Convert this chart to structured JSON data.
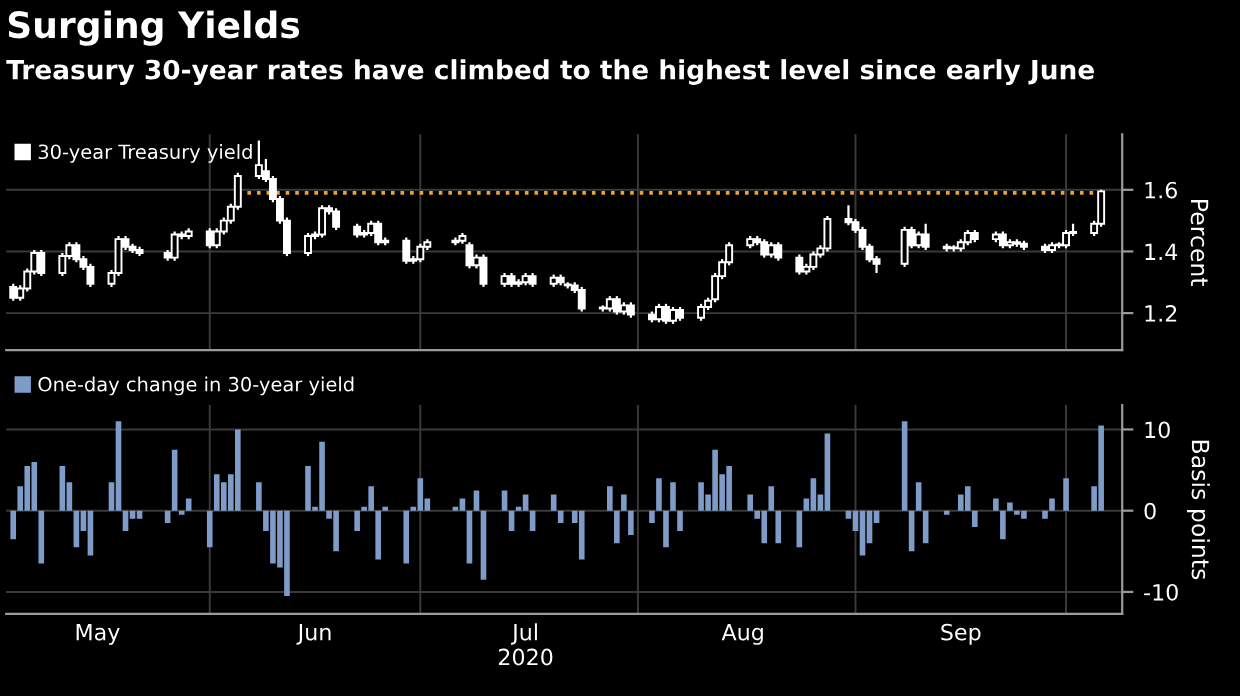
{
  "chart_data": [
    {
      "type": "candlestick",
      "title": "Surging Yields",
      "subtitle": "Treasury 30-year rates have climbed to the highest level since early June",
      "ylabel": "Percent",
      "x": [
        "2020-05-04",
        "2020-05-05",
        "2020-05-06",
        "2020-05-07",
        "2020-05-08",
        "2020-05-11",
        "2020-05-12",
        "2020-05-13",
        "2020-05-14",
        "2020-05-15",
        "2020-05-18",
        "2020-05-19",
        "2020-05-20",
        "2020-05-21",
        "2020-05-22",
        "2020-05-26",
        "2020-05-27",
        "2020-05-28",
        "2020-05-29",
        "2020-06-01",
        "2020-06-02",
        "2020-06-03",
        "2020-06-04",
        "2020-06-05",
        "2020-06-08",
        "2020-06-09",
        "2020-06-10",
        "2020-06-11",
        "2020-06-12",
        "2020-06-15",
        "2020-06-16",
        "2020-06-17",
        "2020-06-18",
        "2020-06-19",
        "2020-06-22",
        "2020-06-23",
        "2020-06-24",
        "2020-06-25",
        "2020-06-26",
        "2020-06-29",
        "2020-06-30",
        "2020-07-01",
        "2020-07-02",
        "2020-07-06",
        "2020-07-07",
        "2020-07-08",
        "2020-07-09",
        "2020-07-10",
        "2020-07-13",
        "2020-07-14",
        "2020-07-15",
        "2020-07-16",
        "2020-07-17",
        "2020-07-20",
        "2020-07-21",
        "2020-07-22",
        "2020-07-23",
        "2020-07-24",
        "2020-07-27",
        "2020-07-28",
        "2020-07-29",
        "2020-07-30",
        "2020-07-31",
        "2020-08-03",
        "2020-08-04",
        "2020-08-05",
        "2020-08-06",
        "2020-08-07",
        "2020-08-10",
        "2020-08-11",
        "2020-08-12",
        "2020-08-13",
        "2020-08-14",
        "2020-08-17",
        "2020-08-18",
        "2020-08-19",
        "2020-08-20",
        "2020-08-21",
        "2020-08-24",
        "2020-08-25",
        "2020-08-26",
        "2020-08-27",
        "2020-08-28",
        "2020-08-31",
        "2020-09-01",
        "2020-09-02",
        "2020-09-03",
        "2020-09-04",
        "2020-09-08",
        "2020-09-09",
        "2020-09-10",
        "2020-09-11",
        "2020-09-14",
        "2020-09-15",
        "2020-09-16",
        "2020-09-17",
        "2020-09-18",
        "2020-09-21",
        "2020-09-22",
        "2020-09-23",
        "2020-09-24",
        "2020-09-25",
        "2020-09-28",
        "2020-09-29",
        "2020-09-30",
        "2020-10-01",
        "2020-10-02",
        "2020-10-05",
        "2020-10-06"
      ],
      "series": [
        {
          "name": "30-year Treasury yield",
          "type": "candlestick",
          "color": "#ffffff",
          "ohlc": [
            [
              1.285,
              1.295,
              1.24,
              1.25
            ],
            [
              1.25,
              1.29,
              1.24,
              1.28
            ],
            [
              1.28,
              1.345,
              1.27,
              1.335
            ],
            [
              1.335,
              1.405,
              1.325,
              1.395
            ],
            [
              1.395,
              1.405,
              1.32,
              1.33
            ],
            [
              1.33,
              1.395,
              1.32,
              1.385
            ],
            [
              1.385,
              1.43,
              1.375,
              1.42
            ],
            [
              1.42,
              1.43,
              1.365,
              1.375
            ],
            [
              1.375,
              1.385,
              1.34,
              1.35
            ],
            [
              1.35,
              1.36,
              1.285,
              1.295
            ],
            [
              1.295,
              1.34,
              1.285,
              1.33
            ],
            [
              1.33,
              1.45,
              1.32,
              1.44
            ],
            [
              1.44,
              1.45,
              1.405,
              1.415
            ],
            [
              1.415,
              1.425,
              1.395,
              1.405
            ],
            [
              1.405,
              1.415,
              1.385,
              1.395
            ],
            [
              1.395,
              1.405,
              1.37,
              1.38
            ],
            [
              1.38,
              1.465,
              1.37,
              1.455
            ],
            [
              1.455,
              1.465,
              1.44,
              1.45
            ],
            [
              1.45,
              1.475,
              1.44,
              1.465
            ],
            [
              1.465,
              1.475,
              1.41,
              1.42
            ],
            [
              1.42,
              1.475,
              1.41,
              1.465
            ],
            [
              1.465,
              1.51,
              1.455,
              1.5
            ],
            [
              1.5,
              1.555,
              1.49,
              1.545
            ],
            [
              1.545,
              1.655,
              1.535,
              1.645
            ],
            [
              1.645,
              1.76,
              1.635,
              1.68
            ],
            [
              1.66,
              1.7,
              1.625,
              1.635
            ],
            [
              1.635,
              1.645,
              1.56,
              1.57
            ],
            [
              1.57,
              1.58,
              1.49,
              1.5
            ],
            [
              1.5,
              1.51,
              1.385,
              1.395
            ],
            [
              1.395,
              1.46,
              1.385,
              1.45
            ],
            [
              1.45,
              1.465,
              1.44,
              1.455
            ],
            [
              1.455,
              1.55,
              1.445,
              1.54
            ],
            [
              1.54,
              1.55,
              1.52,
              1.53
            ],
            [
              1.53,
              1.54,
              1.47,
              1.48
            ],
            [
              1.48,
              1.49,
              1.445,
              1.455
            ],
            [
              1.455,
              1.47,
              1.445,
              1.46
            ],
            [
              1.46,
              1.5,
              1.45,
              1.49
            ],
            [
              1.49,
              1.5,
              1.42,
              1.43
            ],
            [
              1.43,
              1.445,
              1.42,
              1.435
            ],
            [
              1.435,
              1.445,
              1.36,
              1.37
            ],
            [
              1.37,
              1.385,
              1.36,
              1.375
            ],
            [
              1.375,
              1.425,
              1.365,
              1.415
            ],
            [
              1.415,
              1.44,
              1.405,
              1.43
            ],
            [
              1.43,
              1.445,
              1.42,
              1.435
            ],
            [
              1.435,
              1.46,
              1.425,
              1.45
            ],
            [
              1.42,
              1.43,
              1.345,
              1.355
            ],
            [
              1.355,
              1.39,
              1.345,
              1.38
            ],
            [
              1.38,
              1.39,
              1.285,
              1.295
            ],
            [
              1.295,
              1.33,
              1.285,
              1.32
            ],
            [
              1.32,
              1.33,
              1.285,
              1.295
            ],
            [
              1.295,
              1.31,
              1.285,
              1.3
            ],
            [
              1.3,
              1.33,
              1.29,
              1.32
            ],
            [
              1.32,
              1.33,
              1.285,
              1.295
            ],
            [
              1.295,
              1.325,
              1.285,
              1.315
            ],
            [
              1.315,
              1.325,
              1.29,
              1.3
            ],
            [
              1.29,
              1.3,
              1.28,
              1.29
            ],
            [
              1.29,
              1.3,
              1.265,
              1.275
            ],
            [
              1.275,
              1.285,
              1.205,
              1.215
            ],
            [
              1.215,
              1.225,
              1.205,
              1.215
            ],
            [
              1.215,
              1.255,
              1.205,
              1.245
            ],
            [
              1.245,
              1.255,
              1.195,
              1.205
            ],
            [
              1.205,
              1.235,
              1.195,
              1.225
            ],
            [
              1.225,
              1.235,
              1.185,
              1.195
            ],
            [
              1.195,
              1.205,
              1.17,
              1.18
            ],
            [
              1.18,
              1.23,
              1.17,
              1.22
            ],
            [
              1.22,
              1.23,
              1.165,
              1.175
            ],
            [
              1.175,
              1.22,
              1.165,
              1.21
            ],
            [
              1.21,
              1.22,
              1.175,
              1.185
            ],
            [
              1.185,
              1.23,
              1.175,
              1.22
            ],
            [
              1.22,
              1.25,
              1.21,
              1.24
            ],
            [
              1.245,
              1.33,
              1.235,
              1.32
            ],
            [
              1.32,
              1.375,
              1.31,
              1.365
            ],
            [
              1.365,
              1.43,
              1.355,
              1.42
            ],
            [
              1.42,
              1.45,
              1.41,
              1.44
            ],
            [
              1.44,
              1.45,
              1.42,
              1.43
            ],
            [
              1.43,
              1.44,
              1.38,
              1.39
            ],
            [
              1.39,
              1.43,
              1.38,
              1.42
            ],
            [
              1.42,
              1.43,
              1.37,
              1.38
            ],
            [
              1.38,
              1.39,
              1.325,
              1.335
            ],
            [
              1.335,
              1.36,
              1.325,
              1.35
            ],
            [
              1.35,
              1.4,
              1.34,
              1.39
            ],
            [
              1.39,
              1.42,
              1.38,
              1.41
            ],
            [
              1.41,
              1.515,
              1.4,
              1.505
            ],
            [
              1.505,
              1.55,
              1.485,
              1.495
            ],
            [
              1.495,
              1.505,
              1.46,
              1.47
            ],
            [
              1.47,
              1.48,
              1.405,
              1.415
            ],
            [
              1.415,
              1.425,
              1.365,
              1.375
            ],
            [
              1.375,
              1.385,
              1.33,
              1.36
            ],
            [
              1.36,
              1.48,
              1.35,
              1.47
            ],
            [
              1.47,
              1.48,
              1.41,
              1.42
            ],
            [
              1.42,
              1.465,
              1.41,
              1.455
            ],
            [
              1.455,
              1.49,
              1.405,
              1.415
            ],
            [
              1.415,
              1.425,
              1.4,
              1.41
            ],
            [
              1.41,
              1.42,
              1.4,
              1.41
            ],
            [
              1.41,
              1.44,
              1.4,
              1.43
            ],
            [
              1.43,
              1.47,
              1.42,
              1.46
            ],
            [
              1.46,
              1.47,
              1.43,
              1.44
            ],
            [
              1.44,
              1.465,
              1.43,
              1.455
            ],
            [
              1.455,
              1.465,
              1.41,
              1.42
            ],
            [
              1.42,
              1.44,
              1.41,
              1.43
            ],
            [
              1.43,
              1.44,
              1.415,
              1.425
            ],
            [
              1.425,
              1.435,
              1.405,
              1.415
            ],
            [
              1.415,
              1.425,
              1.395,
              1.405
            ],
            [
              1.405,
              1.43,
              1.395,
              1.42
            ],
            [
              1.42,
              1.43,
              1.41,
              1.42
            ],
            [
              1.42,
              1.47,
              1.41,
              1.46
            ],
            [
              1.46,
              1.49,
              1.45,
              1.46
            ],
            [
              1.46,
              1.5,
              1.45,
              1.49
            ],
            [
              1.49,
              1.6,
              1.48,
              1.595
            ]
          ]
        },
        {
          "type": "line",
          "color": "#e8a33a",
          "line_style": "dotted",
          "x": [
            "2020-06-05",
            "2020-10-05"
          ],
          "values": [
            1.59,
            1.59
          ]
        }
      ],
      "xlim": [
        "2020-05-03",
        "2020-10-09"
      ],
      "xticks": [
        {
          "value": "2020-06-01",
          "label": null
        },
        {
          "value": "2020-07-01",
          "label": null
        },
        {
          "value": "2020-08-01",
          "label": null
        },
        {
          "value": "2020-09-01",
          "label": null
        },
        {
          "value": "2020-10-01",
          "label": null
        }
      ],
      "ylim": [
        1.08,
        1.78
      ],
      "yticks": [
        1.2,
        1.4,
        1.6
      ],
      "grid": true,
      "legend": "top left",
      "tick_labels": "y"
    },
    {
      "type": "bar",
      "ylabel": "Basis points",
      "series": [
        {
          "name": "One-day change in 30-year yield",
          "color": "#7f9cc8",
          "values": [
            -3.5,
            3,
            5.5,
            6,
            -6.5,
            5.5,
            3.5,
            -4.5,
            -2.5,
            -5.5,
            3.5,
            11,
            -2.5,
            -1,
            -1,
            -1.5,
            7.5,
            -0.5,
            1.5,
            -4.5,
            4.5,
            3.5,
            4.5,
            10,
            3.5,
            -2.5,
            -6.5,
            -7,
            -10.5,
            5.5,
            0.5,
            8.5,
            -1,
            -5,
            -2.5,
            0.5,
            3,
            -6,
            0.5,
            -6.5,
            0.5,
            4,
            1.5,
            0.5,
            1.5,
            -6.5,
            2.5,
            -8.5,
            2.5,
            -2.5,
            0.5,
            2,
            -2.5,
            2,
            -1.5,
            0,
            -1.5,
            -6,
            0,
            3,
            -4,
            2,
            -3,
            -1.5,
            4,
            -4.5,
            3.5,
            -2.5,
            3.5,
            2,
            7.5,
            4.5,
            5.5,
            2,
            -1,
            -4,
            3,
            -4,
            -4.5,
            1.5,
            4,
            2,
            9.5,
            -1,
            -2.5,
            -5.5,
            -4,
            -1.5,
            11,
            -5,
            3.5,
            -4,
            -0.5,
            0,
            2,
            3,
            -2,
            1.5,
            -3.5,
            1,
            -0.5,
            -1,
            -1,
            1.5,
            0,
            4,
            0,
            3,
            10.5
          ]
        }
      ],
      "x": [
        "2020-05-04",
        "2020-05-05",
        "2020-05-06",
        "2020-05-07",
        "2020-05-08",
        "2020-05-11",
        "2020-05-12",
        "2020-05-13",
        "2020-05-14",
        "2020-05-15",
        "2020-05-18",
        "2020-05-19",
        "2020-05-20",
        "2020-05-21",
        "2020-05-22",
        "2020-05-26",
        "2020-05-27",
        "2020-05-28",
        "2020-05-29",
        "2020-06-01",
        "2020-06-02",
        "2020-06-03",
        "2020-06-04",
        "2020-06-05",
        "2020-06-08",
        "2020-06-09",
        "2020-06-10",
        "2020-06-11",
        "2020-06-12",
        "2020-06-15",
        "2020-06-16",
        "2020-06-17",
        "2020-06-18",
        "2020-06-19",
        "2020-06-22",
        "2020-06-23",
        "2020-06-24",
        "2020-06-25",
        "2020-06-26",
        "2020-06-29",
        "2020-06-30",
        "2020-07-01",
        "2020-07-02",
        "2020-07-06",
        "2020-07-07",
        "2020-07-08",
        "2020-07-09",
        "2020-07-10",
        "2020-07-13",
        "2020-07-14",
        "2020-07-15",
        "2020-07-16",
        "2020-07-17",
        "2020-07-20",
        "2020-07-21",
        "2020-07-22",
        "2020-07-23",
        "2020-07-24",
        "2020-07-27",
        "2020-07-28",
        "2020-07-29",
        "2020-07-30",
        "2020-07-31",
        "2020-08-03",
        "2020-08-04",
        "2020-08-05",
        "2020-08-06",
        "2020-08-07",
        "2020-08-10",
        "2020-08-11",
        "2020-08-12",
        "2020-08-13",
        "2020-08-14",
        "2020-08-17",
        "2020-08-18",
        "2020-08-19",
        "2020-08-20",
        "2020-08-21",
        "2020-08-24",
        "2020-08-25",
        "2020-08-26",
        "2020-08-27",
        "2020-08-28",
        "2020-08-31",
        "2020-09-01",
        "2020-09-02",
        "2020-09-03",
        "2020-09-04",
        "2020-09-08",
        "2020-09-09",
        "2020-09-10",
        "2020-09-11",
        "2020-09-14",
        "2020-09-15",
        "2020-09-16",
        "2020-09-17",
        "2020-09-18",
        "2020-09-21",
        "2020-09-22",
        "2020-09-23",
        "2020-09-24",
        "2020-09-25",
        "2020-09-28",
        "2020-09-29",
        "2020-09-30",
        "2020-10-01",
        "2020-10-02",
        "2020-10-05",
        "2020-10-06"
      ],
      "xlim": [
        "2020-05-03",
        "2020-10-09"
      ],
      "xticks": [
        {
          "value": "2020-05-16",
          "label": "May"
        },
        {
          "value": "2020-06-01",
          "label": null
        },
        {
          "value": "2020-06-16",
          "label": "Jun"
        },
        {
          "value": "2020-07-01",
          "label": null
        },
        {
          "value": "2020-07-16",
          "label": "Jul\n2020"
        },
        {
          "value": "2020-08-01",
          "label": null
        },
        {
          "value": "2020-08-16",
          "label": "Aug"
        },
        {
          "value": "2020-09-01",
          "label": null
        },
        {
          "value": "2020-09-16",
          "label": "Sep"
        },
        {
          "value": "2020-10-01",
          "label": null
        }
      ],
      "ylim": [
        -12.7,
        13
      ],
      "yticks": [
        -10,
        0,
        10
      ],
      "grid": true,
      "legend": "top left"
    }
  ]
}
